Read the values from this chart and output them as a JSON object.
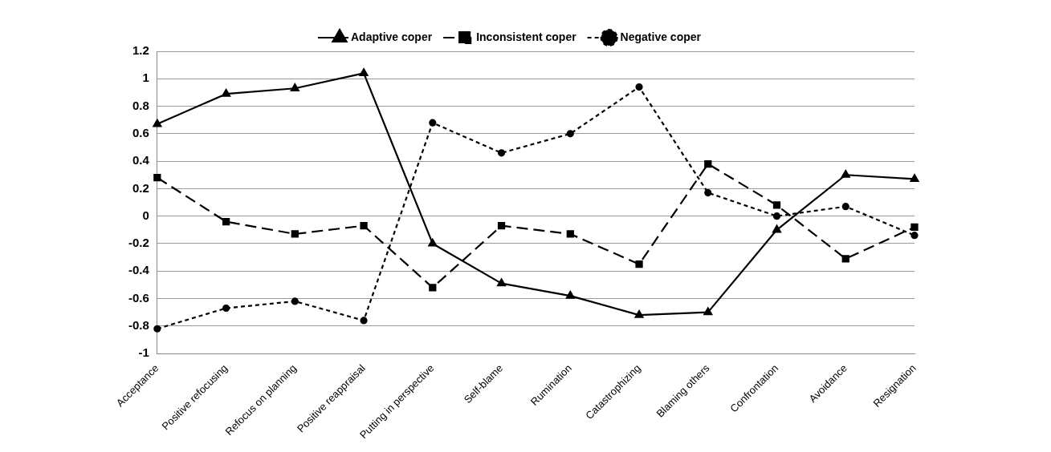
{
  "chart_data": {
    "type": "line",
    "categories": [
      "Acceptance",
      "Positive refocusing",
      "Refocus on planning",
      "Positive reappraisal",
      "Putting in perspective",
      "Self-blame",
      "Rumination",
      "Catastrophizing",
      "Blaming others",
      "Confrontation",
      "Avoidance",
      "Resignation"
    ],
    "series": [
      {
        "name": "Adaptive coper",
        "color": "#000000",
        "marker": "triangle",
        "line_style": "solid",
        "values": [
          0.67,
          0.89,
          0.93,
          1.04,
          -0.2,
          -0.49,
          -0.58,
          -0.72,
          -0.7,
          -0.1,
          0.3,
          0.27
        ]
      },
      {
        "name": "Inconsistent coper",
        "color": "#000000",
        "marker": "square",
        "line_style": "dashed",
        "values": [
          0.28,
          -0.04,
          -0.13,
          -0.07,
          -0.52,
          -0.07,
          -0.13,
          -0.35,
          0.38,
          0.08,
          -0.31,
          -0.08
        ]
      },
      {
        "name": "Negative coper",
        "color": "#000000",
        "marker": "circle",
        "line_style": "dotted",
        "values": [
          -0.82,
          -0.67,
          -0.62,
          -0.76,
          0.68,
          0.46,
          0.6,
          0.94,
          0.17,
          0,
          0.07,
          -0.14
        ]
      }
    ],
    "ylim": [
      -1,
      1.2
    ],
    "yticks": [
      -1,
      -0.8,
      -0.6,
      -0.4,
      -0.2,
      0,
      0.2,
      0.4,
      0.6,
      0.8,
      1,
      1.2
    ],
    "grid": "y",
    "legend": "top"
  }
}
